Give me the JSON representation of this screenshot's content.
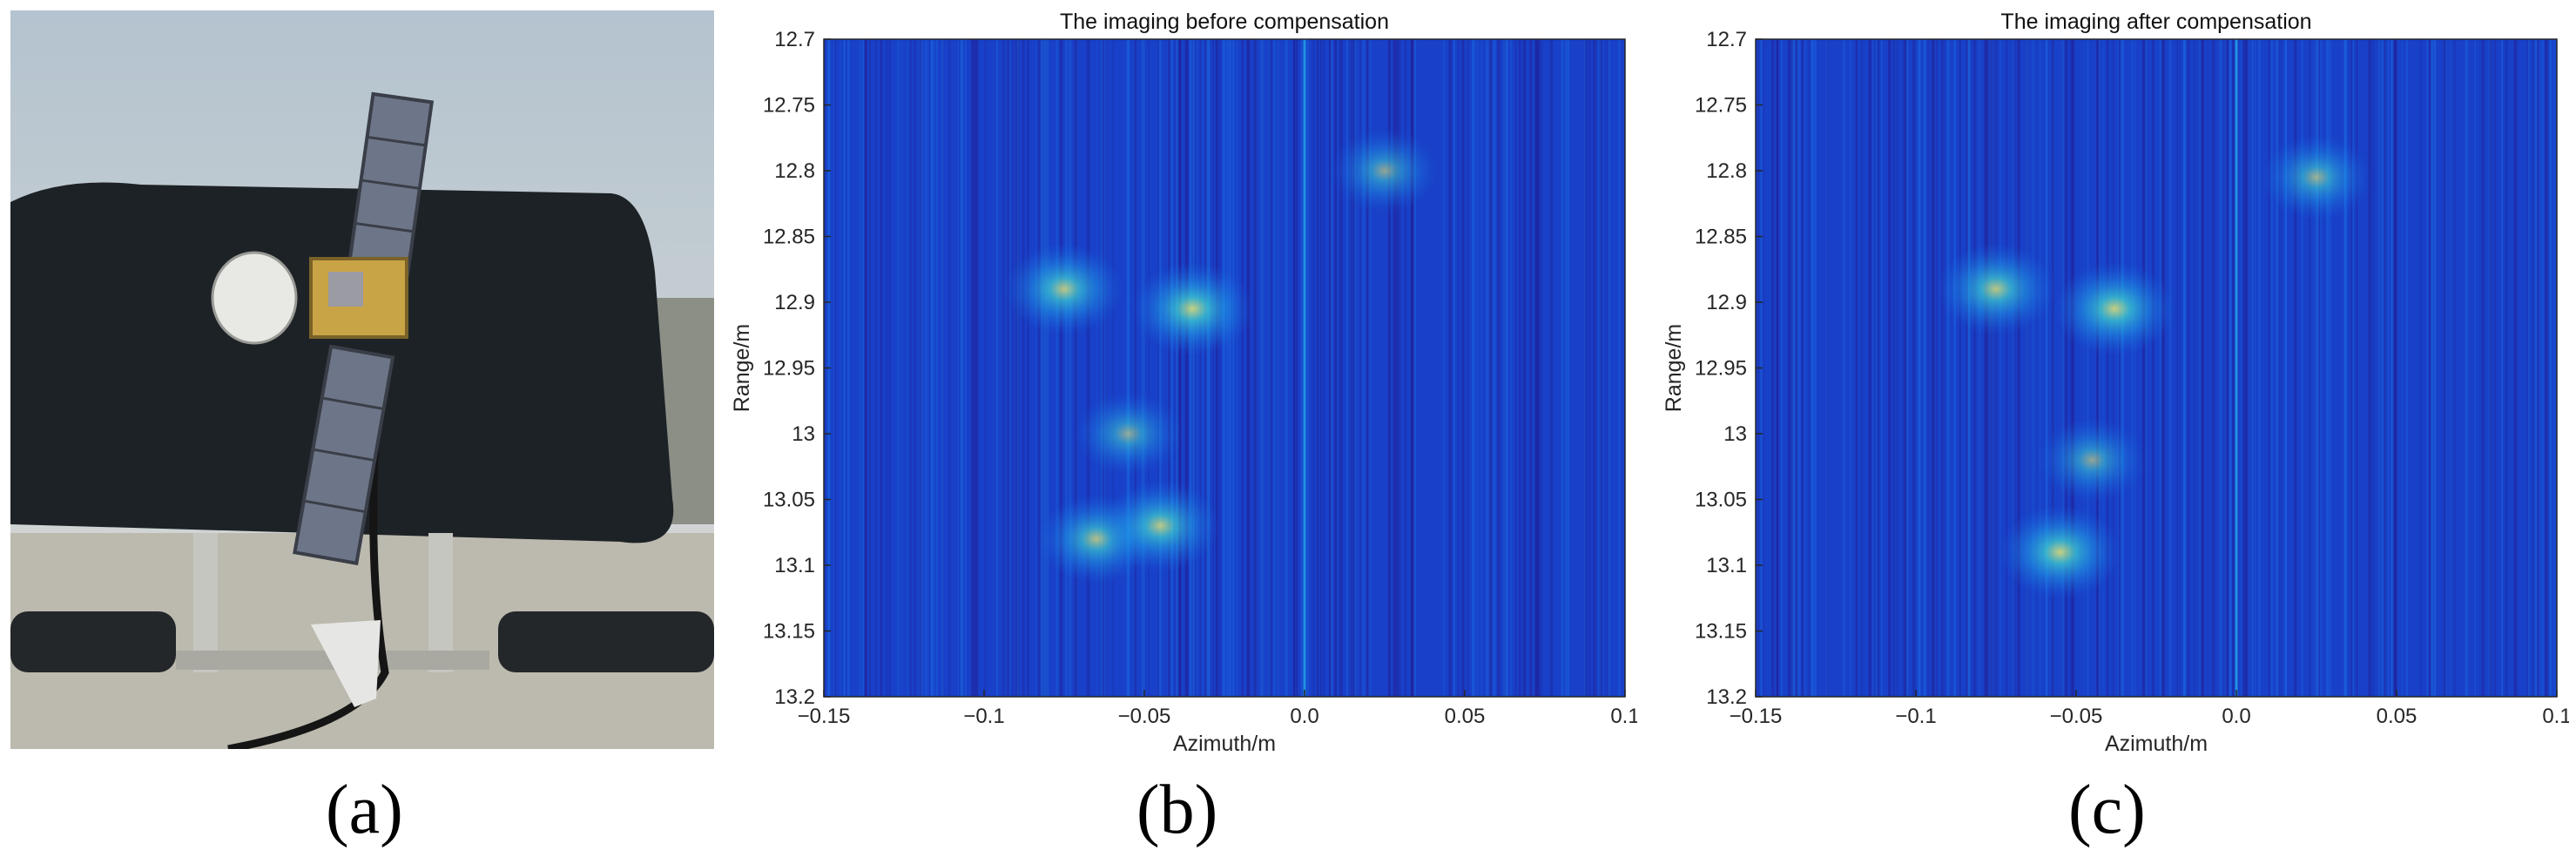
{
  "figure": {
    "labels": [
      "(a)",
      "(b)",
      "(c)"
    ]
  },
  "photo": {
    "description_icon": "satellite-model-photo-icon",
    "colors": {
      "sky": "#c9d2da",
      "cover": "#1d2226",
      "ground": "#b9b7ad",
      "panel": "#6d7688",
      "body": "#c9a447"
    }
  },
  "chart_data": [
    {
      "type": "heatmap",
      "title": "The imaging before compensation",
      "xlabel": "Azimuth/m",
      "ylabel": "Range/m",
      "xlim": [
        -0.15,
        0.1
      ],
      "ylim": [
        12.7,
        13.2
      ],
      "y_reversed": true,
      "x_ticks": [
        "−0.15",
        "−0.1",
        "−0.05",
        "0.0",
        "0.05",
        "0.1"
      ],
      "x_tick_values": [
        -0.15,
        -0.1,
        -0.05,
        0.0,
        0.05,
        0.1
      ],
      "y_ticks": [
        "12.7",
        "12.75",
        "12.8",
        "12.85",
        "12.9",
        "12.95",
        "13",
        "13.05",
        "13.1",
        "13.15",
        "13.2"
      ],
      "y_tick_values": [
        12.7,
        12.75,
        12.8,
        12.85,
        12.9,
        12.95,
        13.0,
        13.05,
        13.1,
        13.15,
        13.2
      ],
      "colormap": [
        "#241a8e",
        "#1840c8",
        "#1a6ee6",
        "#22a7e8",
        "#3fd4d0",
        "#8ff0a0",
        "#f0f070"
      ],
      "scatterers": [
        {
          "x": -0.075,
          "y": 12.89,
          "intensity": 0.8
        },
        {
          "x": -0.035,
          "y": 12.905,
          "intensity": 0.85
        },
        {
          "x": 0.025,
          "y": 12.8,
          "intensity": 0.6
        },
        {
          "x": -0.065,
          "y": 13.08,
          "intensity": 0.75
        },
        {
          "x": -0.045,
          "y": 13.07,
          "intensity": 0.8
        },
        {
          "x": -0.055,
          "y": 13.0,
          "intensity": 0.6
        }
      ]
    },
    {
      "type": "heatmap",
      "title": "The imaging after compensation",
      "xlabel": "Azimuth/m",
      "ylabel": "Range/m",
      "xlim": [
        -0.15,
        0.1
      ],
      "ylim": [
        12.7,
        13.2
      ],
      "y_reversed": true,
      "x_ticks": [
        "−0.15",
        "−0.1",
        "−0.05",
        "0.0",
        "0.05",
        "0.1"
      ],
      "x_tick_values": [
        -0.15,
        -0.1,
        -0.05,
        0.0,
        0.05,
        0.1
      ],
      "y_ticks": [
        "12.7",
        "12.75",
        "12.8",
        "12.85",
        "12.9",
        "12.95",
        "13",
        "13.05",
        "13.1",
        "13.15",
        "13.2"
      ],
      "y_tick_values": [
        12.7,
        12.75,
        12.8,
        12.85,
        12.9,
        12.95,
        13.0,
        13.05,
        13.1,
        13.15,
        13.2
      ],
      "colormap": [
        "#241a8e",
        "#1840c8",
        "#1a6ee6",
        "#22a7e8",
        "#3fd4d0",
        "#8ff0a0",
        "#f0f070"
      ],
      "scatterers": [
        {
          "x": -0.075,
          "y": 12.89,
          "intensity": 0.8
        },
        {
          "x": -0.038,
          "y": 12.905,
          "intensity": 0.85
        },
        {
          "x": 0.025,
          "y": 12.805,
          "intensity": 0.65
        },
        {
          "x": -0.055,
          "y": 13.09,
          "intensity": 0.85
        },
        {
          "x": -0.045,
          "y": 13.02,
          "intensity": 0.6
        }
      ]
    }
  ]
}
